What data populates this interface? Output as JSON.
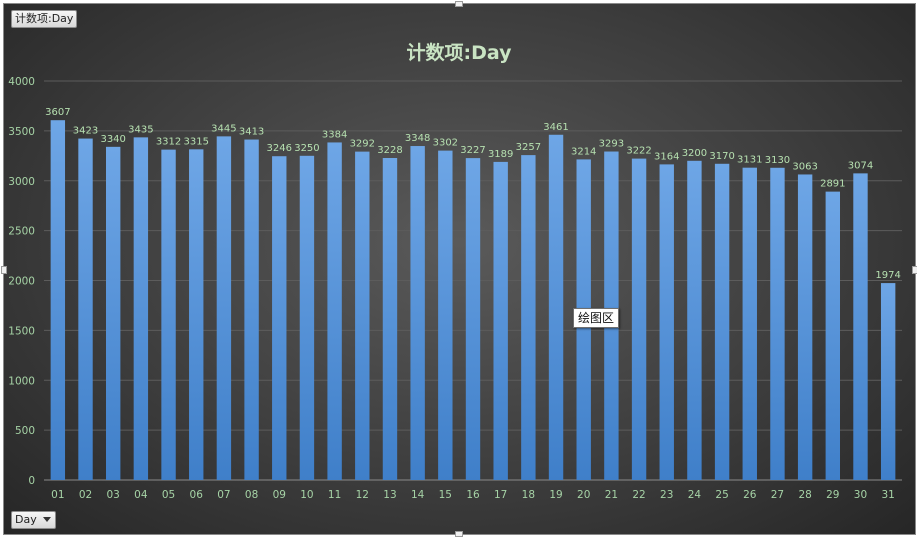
{
  "pivot": {
    "title_button": "计数项:Day",
    "filter_button": "Day",
    "tooltip": "绘图区"
  },
  "colors": {
    "bar_top": "#6ea6e6",
    "bar_bottom": "#3f7fc9",
    "label": "#b6e0b0",
    "grid": "#5c5c5c"
  },
  "chart_data": {
    "type": "bar",
    "title": "计数项:Day",
    "xlabel": "",
    "ylabel": "",
    "ylim": [
      0,
      4000
    ],
    "yticks": [
      0,
      500,
      1000,
      1500,
      2000,
      2500,
      3000,
      3500,
      4000
    ],
    "grid": true,
    "legend": "none",
    "categories": [
      "01",
      "02",
      "03",
      "04",
      "05",
      "06",
      "07",
      "08",
      "09",
      "10",
      "11",
      "12",
      "13",
      "14",
      "15",
      "16",
      "17",
      "18",
      "19",
      "20",
      "21",
      "22",
      "23",
      "24",
      "25",
      "26",
      "27",
      "28",
      "29",
      "30",
      "31"
    ],
    "values": [
      3607,
      3423,
      3340,
      3435,
      3312,
      3315,
      3445,
      3413,
      3246,
      3250,
      3384,
      3292,
      3228,
      3348,
      3302,
      3227,
      3189,
      3257,
      3461,
      3214,
      3293,
      3222,
      3164,
      3200,
      3170,
      3131,
      3130,
      3063,
      2891,
      3074,
      1974
    ]
  }
}
